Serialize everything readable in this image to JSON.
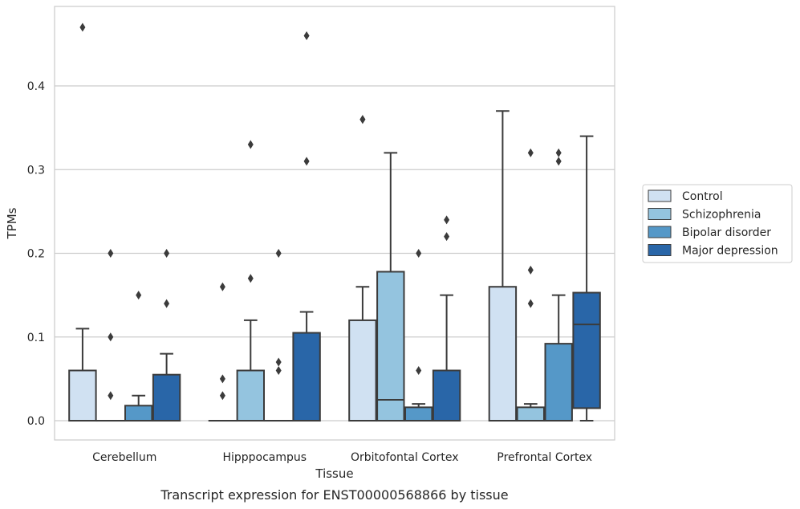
{
  "chart_data": {
    "type": "box",
    "caption": "Transcript expression for ENST00000568866 by tissue",
    "xlabel": "Tissue",
    "ylabel": "TPMs",
    "ylim": [
      -0.023,
      0.495
    ],
    "yticks": [
      "0.0",
      "0.1",
      "0.2",
      "0.3",
      "0.4"
    ],
    "grid": true,
    "legend_position": "right",
    "categories": [
      "Cerebellum",
      "Hipppocampus",
      "Orbitofontal Cortex",
      "Prefrontal Cortex"
    ],
    "series": [
      {
        "name": "Control",
        "color": "#d0e1f2",
        "boxes": [
          {
            "q1": 0.0,
            "median": 0.0,
            "q3": 0.06,
            "whisker_low": 0.0,
            "whisker_high": 0.11,
            "outliers": [
              0.47
            ]
          },
          {
            "q1": 0.0,
            "median": 0.0,
            "q3": 0.0,
            "whisker_low": 0.0,
            "whisker_high": 0.0,
            "outliers": [
              0.03,
              0.05,
              0.16
            ]
          },
          {
            "q1": 0.0,
            "median": 0.0,
            "q3": 0.12,
            "whisker_low": 0.0,
            "whisker_high": 0.16,
            "outliers": [
              0.36,
              0.36
            ]
          },
          {
            "q1": 0.0,
            "median": 0.0,
            "q3": 0.16,
            "whisker_low": 0.0,
            "whisker_high": 0.37,
            "outliers": []
          }
        ]
      },
      {
        "name": "Schizophrenia",
        "color": "#94c4df",
        "boxes": [
          {
            "q1": 0.0,
            "median": 0.0,
            "q3": 0.0,
            "whisker_low": 0.0,
            "whisker_high": 0.0,
            "outliers": [
              0.03,
              0.1,
              0.2
            ]
          },
          {
            "q1": 0.0,
            "median": 0.0,
            "q3": 0.06,
            "whisker_low": 0.0,
            "whisker_high": 0.12,
            "outliers": [
              0.17,
              0.33
            ]
          },
          {
            "q1": 0.0,
            "median": 0.025,
            "q3": 0.178,
            "whisker_low": 0.0,
            "whisker_high": 0.32,
            "outliers": []
          },
          {
            "q1": 0.0,
            "median": 0.0,
            "q3": 0.016,
            "whisker_low": 0.0,
            "whisker_high": 0.02,
            "outliers": [
              0.14,
              0.18,
              0.32
            ]
          }
        ]
      },
      {
        "name": "Bipolar disorder",
        "color": "#5598c8",
        "boxes": [
          {
            "q1": 0.0,
            "median": 0.0,
            "q3": 0.018,
            "whisker_low": 0.0,
            "whisker_high": 0.03,
            "outliers": [
              0.15
            ]
          },
          {
            "q1": 0.0,
            "median": 0.0,
            "q3": 0.0,
            "whisker_low": 0.0,
            "whisker_high": 0.0,
            "outliers": [
              0.06,
              0.07,
              0.2
            ]
          },
          {
            "q1": 0.0,
            "median": 0.0,
            "q3": 0.016,
            "whisker_low": 0.0,
            "whisker_high": 0.02,
            "outliers": [
              0.06,
              0.2
            ]
          },
          {
            "q1": 0.0,
            "median": 0.0,
            "q3": 0.092,
            "whisker_low": 0.0,
            "whisker_high": 0.15,
            "outliers": [
              0.31,
              0.32
            ]
          }
        ]
      },
      {
        "name": "Major depression",
        "color": "#2966a8",
        "boxes": [
          {
            "q1": 0.0,
            "median": 0.0,
            "q3": 0.055,
            "whisker_low": 0.0,
            "whisker_high": 0.08,
            "outliers": [
              0.14,
              0.2
            ]
          },
          {
            "q1": 0.0,
            "median": 0.0,
            "q3": 0.105,
            "whisker_low": 0.0,
            "whisker_high": 0.13,
            "outliers": [
              0.31,
              0.46
            ]
          },
          {
            "q1": 0.0,
            "median": 0.0,
            "q3": 0.06,
            "whisker_low": 0.0,
            "whisker_high": 0.15,
            "outliers": [
              0.22,
              0.24
            ]
          },
          {
            "q1": 0.015,
            "median": 0.115,
            "q3": 0.153,
            "whisker_low": 0.0,
            "whisker_high": 0.34,
            "outliers": []
          }
        ]
      }
    ]
  }
}
